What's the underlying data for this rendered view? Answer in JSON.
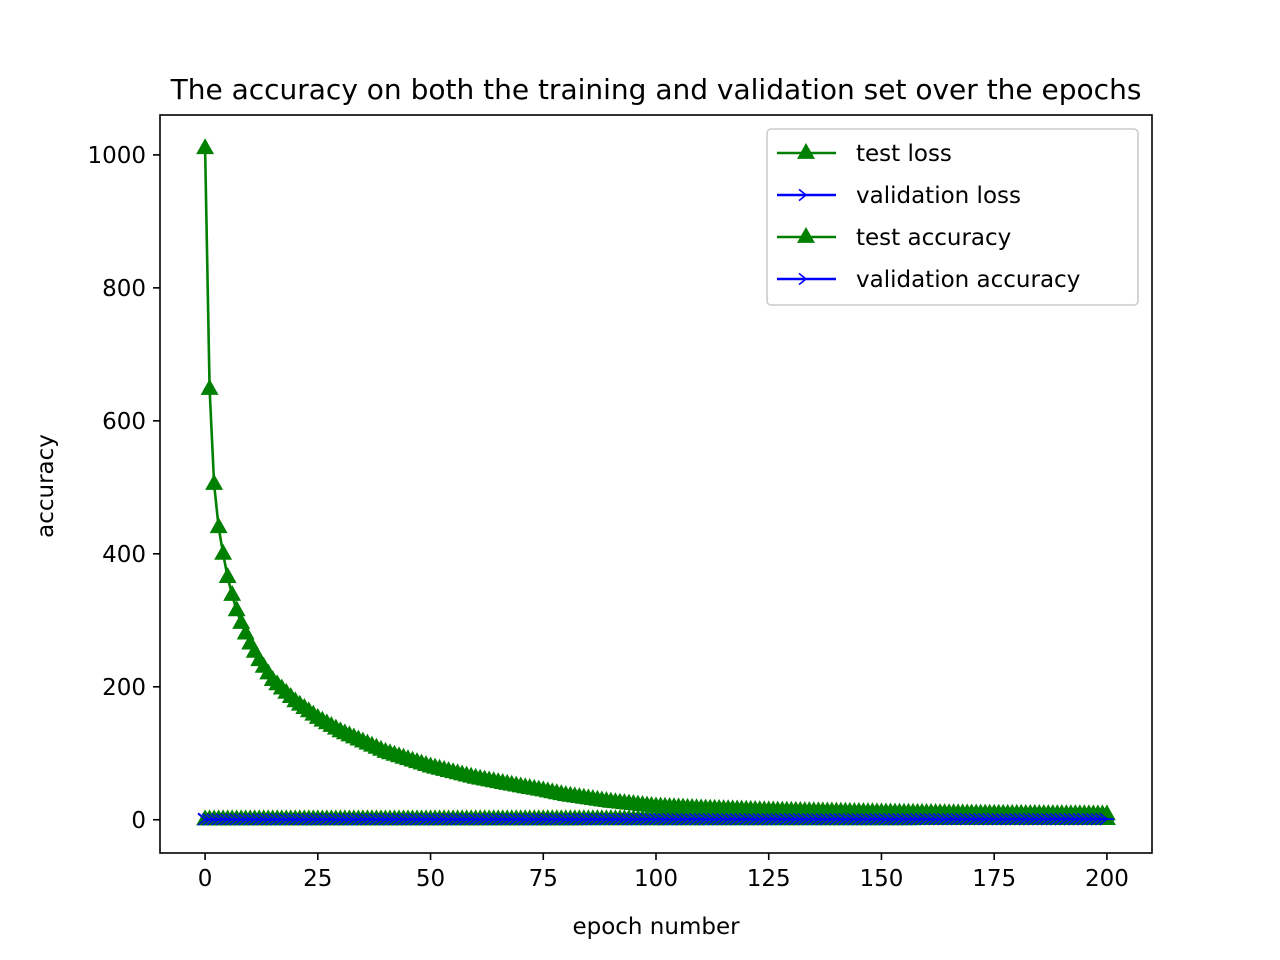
{
  "chart_data": {
    "type": "line",
    "title": "The accuracy on both the training and validation set over the epochs",
    "xlabel": "epoch number",
    "ylabel": "accuracy",
    "xlim": [
      -10,
      210
    ],
    "ylim": [
      -50,
      1060
    ],
    "xticks": [
      0,
      25,
      50,
      75,
      100,
      125,
      150,
      175,
      200
    ],
    "yticks": [
      0,
      200,
      400,
      600,
      800,
      1000
    ],
    "grid": false,
    "legend_position": "top-right",
    "x_range": [
      0,
      200
    ],
    "series": [
      {
        "name": "test loss",
        "color": "#008000",
        "marker": "triangle",
        "values_sampled": {
          "x": [
            0,
            1,
            2,
            3,
            4,
            5,
            6,
            7,
            8,
            9,
            10,
            12,
            15,
            20,
            25,
            30,
            40,
            50,
            60,
            70,
            75,
            80,
            90,
            100,
            110,
            125,
            150,
            175,
            200
          ],
          "y": [
            1010,
            648,
            505,
            440,
            400,
            365,
            338,
            315,
            296,
            280,
            265,
            240,
            210,
            178,
            153,
            133,
            102,
            80,
            63,
            50,
            44,
            37,
            27,
            20,
            17,
            14,
            11,
            9,
            8
          ]
        }
      },
      {
        "name": "validation loss",
        "color": "#0000ff",
        "marker": "tri_right",
        "values_sampled": {
          "x": [
            0,
            200
          ],
          "y": [
            1.5,
            0.5
          ]
        }
      },
      {
        "name": "test accuracy",
        "color": "#008000",
        "marker": "triangle",
        "values_sampled": {
          "x": [
            0,
            200
          ],
          "y": [
            0.5,
            1
          ]
        }
      },
      {
        "name": "validation accuracy",
        "color": "#0000ff",
        "marker": "tri_right",
        "values_sampled": {
          "x": [
            0,
            200
          ],
          "y": [
            0.5,
            1
          ]
        }
      }
    ]
  }
}
